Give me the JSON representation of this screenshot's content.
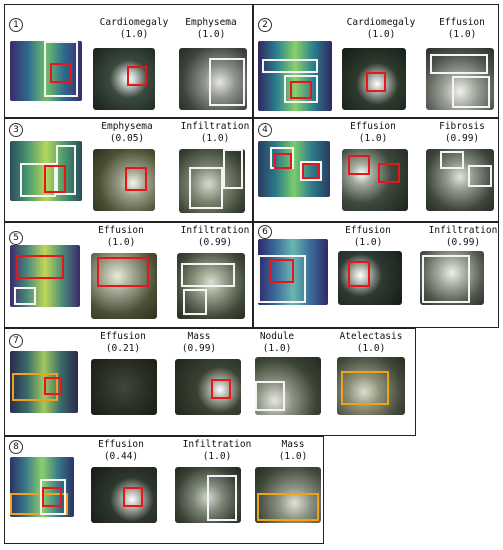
{
  "colors": {
    "white_box": "#f4f4f4",
    "red_box": "#e8151b",
    "orange_box": "#f0a21a"
  },
  "panels": [
    {
      "number": "1",
      "labels": [
        {
          "name": "Cardiomegaly",
          "score": "(1.0)"
        },
        {
          "name": "Emphysema",
          "score": "(1.0)"
        }
      ]
    },
    {
      "number": "2",
      "labels": [
        {
          "name": "Cardiomegaly",
          "score": "(1.0)"
        },
        {
          "name": "Effusion",
          "score": "(1.0)"
        }
      ]
    },
    {
      "number": "3",
      "labels": [
        {
          "name": "Emphysema",
          "score": "(0.05)"
        },
        {
          "name": "Infiltration",
          "score": "(1.0)"
        }
      ]
    },
    {
      "number": "4",
      "labels": [
        {
          "name": "Effusion",
          "score": "(1.0)"
        },
        {
          "name": "Fibrosis",
          "score": "(0.99)"
        }
      ]
    },
    {
      "number": "5",
      "labels": [
        {
          "name": "Effusion",
          "score": "(1.0)"
        },
        {
          "name": "Infiltration",
          "score": "(0.99)"
        }
      ]
    },
    {
      "number": "6",
      "labels": [
        {
          "name": "Effusion",
          "score": "(1.0)"
        },
        {
          "name": "Infiltration",
          "score": "(0.99)"
        }
      ]
    },
    {
      "number": "7",
      "labels": [
        {
          "name": "Effusion",
          "score": "(0.21)"
        },
        {
          "name": "Mass",
          "score": "(0.99)"
        },
        {
          "name": "Nodule",
          "score": "(1.0)"
        },
        {
          "name": "Atelectasis",
          "score": "(1.0)"
        }
      ]
    },
    {
      "number": "8",
      "labels": [
        {
          "name": "Effusion",
          "score": "(0.44)"
        },
        {
          "name": "Infiltration",
          "score": "(1.0)"
        },
        {
          "name": "Mass",
          "score": "(1.0)"
        }
      ]
    }
  ]
}
